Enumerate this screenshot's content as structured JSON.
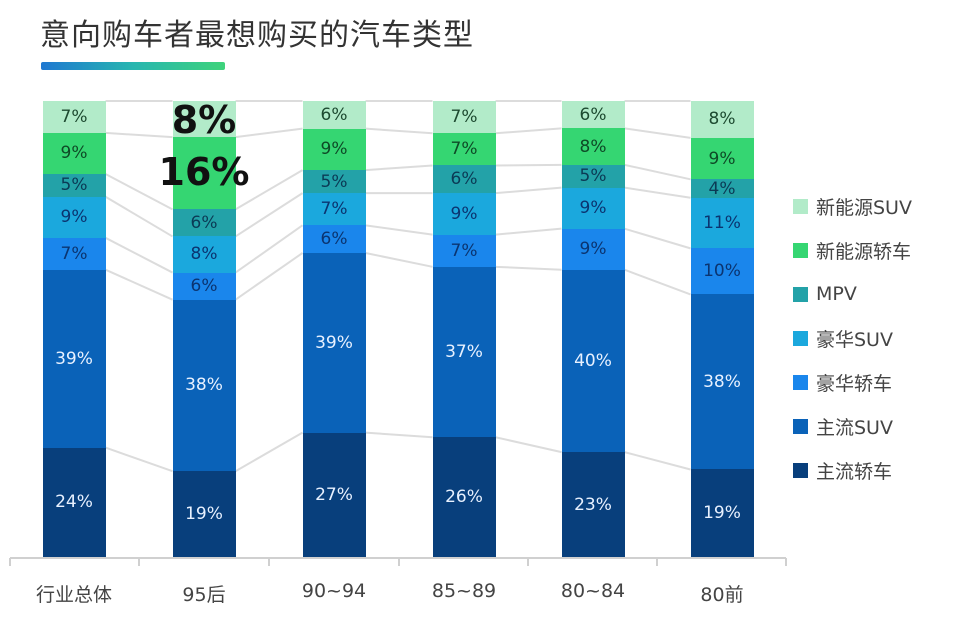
{
  "title": "意向购车者最想购买的汽车类型",
  "chart_data": {
    "type": "bar",
    "stacked": true,
    "title": "意向购车者最想购买的汽车类型",
    "xlabel": "",
    "ylabel": "",
    "ylim": [
      0,
      100
    ],
    "grid": false,
    "legend_position": "right",
    "categories": [
      "行业总体",
      "95后",
      "90~94",
      "85~89",
      "80~84",
      "80前"
    ],
    "series": [
      {
        "name": "主流轿车",
        "color": "#083f7c",
        "text_color": "#e8f1ff",
        "values": [
          24,
          19,
          27,
          26,
          23,
          19
        ]
      },
      {
        "name": "主流SUV",
        "color": "#0a62b8",
        "text_color": "#e8f1ff",
        "values": [
          39,
          38,
          39,
          37,
          40,
          38
        ]
      },
      {
        "name": "豪华轿车",
        "color": "#1a86ec",
        "text_color": "#0b3470",
        "values": [
          7,
          6,
          6,
          7,
          9,
          10
        ]
      },
      {
        "name": "豪华SUV",
        "color": "#1ba8dd",
        "text_color": "#0b3470",
        "values": [
          9,
          8,
          7,
          9,
          9,
          11
        ]
      },
      {
        "name": "MPV",
        "color": "#23a2a8",
        "text_color": "#0b3a55",
        "values": [
          5,
          6,
          5,
          6,
          5,
          4
        ]
      },
      {
        "name": "新能源轿车",
        "color": "#35d672",
        "text_color": "#0e4a26",
        "values": [
          9,
          16,
          9,
          7,
          8,
          9
        ]
      },
      {
        "name": "新能源SUV",
        "color": "#b2ebc9",
        "text_color": "#1d4a30",
        "values": [
          7,
          8,
          6,
          7,
          6,
          8
        ]
      }
    ],
    "annotations": [
      {
        "category": "95后",
        "series": "新能源SUV",
        "text": "8%",
        "style": "large-bold"
      },
      {
        "category": "95后",
        "series": "新能源轿车",
        "text": "16%",
        "style": "large-bold"
      }
    ]
  },
  "legend": [
    {
      "label": "新能源SUV",
      "color": "#b2ebc9"
    },
    {
      "label": "新能源轿车",
      "color": "#35d672"
    },
    {
      "label": "MPV",
      "color": "#23a2a8"
    },
    {
      "label": "豪华SUV",
      "color": "#1ba8dd"
    },
    {
      "label": "豪华轿车",
      "color": "#1a86ec"
    },
    {
      "label": "主流SUV",
      "color": "#0a62b8"
    },
    {
      "label": "主流轿车",
      "color": "#083f7c"
    }
  ]
}
